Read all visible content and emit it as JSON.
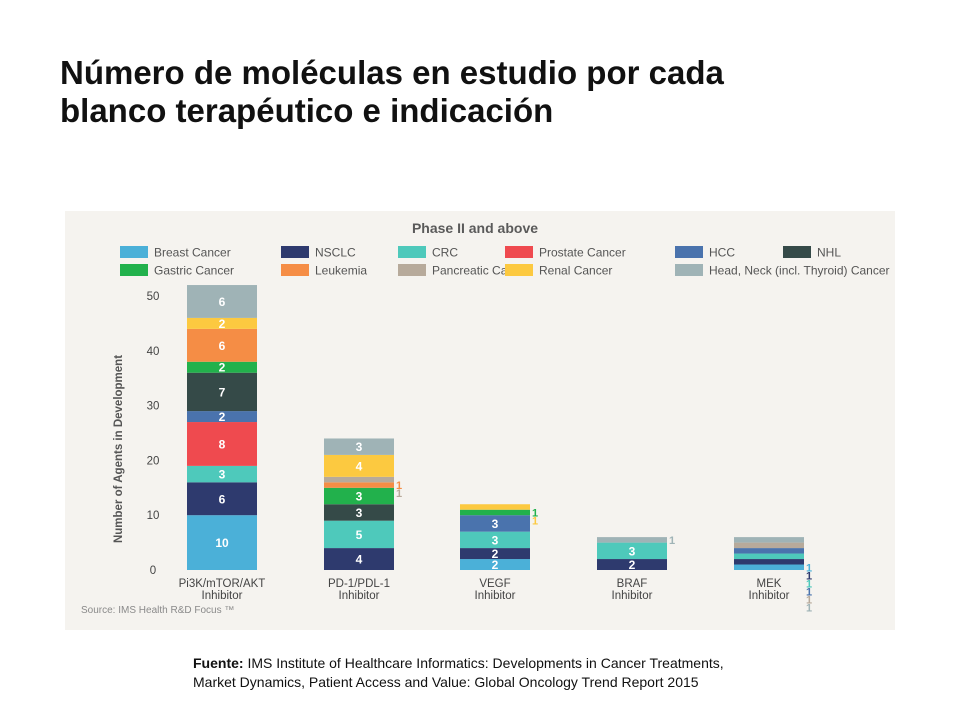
{
  "slide": {
    "title_line1": "Número de moléculas en estudio por cada",
    "title_line2": "blanco terapéutico e indicación",
    "source_label": "Fuente:",
    "source_text_line1": " IMS Institute of Healthcare Informatics: Developments in Cancer Treatments,",
    "source_text_line2": "Market Dynamics, Patient Access and Value: Global Oncology Trend Report 2015"
  },
  "chart_data": {
    "type": "bar",
    "stacked": true,
    "title": "Phase II and above",
    "ylabel": "Number of Agents in Development",
    "xlabel": "",
    "ylim": [
      0,
      50
    ],
    "yticks": [
      0,
      10,
      20,
      30,
      40,
      50
    ],
    "grid": false,
    "legend_position": "top",
    "source": "Source: IMS Health  R&D Focus ™",
    "categories": [
      [
        "Pi3K/mTOR/AKT",
        "Inhibitor"
      ],
      [
        "PD-1/PDL-1",
        "Inhibitor"
      ],
      [
        "VEGF",
        "Inhibitor"
      ],
      [
        "BRAF",
        "Inhibitor"
      ],
      [
        "MEK",
        "Inhibitor"
      ]
    ],
    "series": [
      {
        "name": "Breast Cancer",
        "color": "#4bb0d8",
        "values": [
          10,
          0,
          2,
          0,
          1
        ]
      },
      {
        "name": "NSCLC",
        "color": "#2e3a6e",
        "values": [
          6,
          4,
          2,
          2,
          1
        ]
      },
      {
        "name": "CRC",
        "color": "#4ec9bb",
        "values": [
          3,
          5,
          3,
          3,
          1
        ]
      },
      {
        "name": "Prostate Cancer",
        "color": "#ef4a4f",
        "values": [
          8,
          0,
          0,
          0,
          0
        ]
      },
      {
        "name": "HCC",
        "color": "#4a73ad",
        "values": [
          2,
          0,
          3,
          0,
          1
        ]
      },
      {
        "name": "NHL",
        "color": "#354a48",
        "values": [
          7,
          3,
          0,
          0,
          0
        ]
      },
      {
        "name": "Gastric Cancer",
        "color": "#22b14c",
        "values": [
          2,
          3,
          1,
          0,
          0
        ]
      },
      {
        "name": "Leukemia",
        "color": "#f58d45",
        "values": [
          6,
          1,
          0,
          0,
          0
        ]
      },
      {
        "name": "Pancreatic Cancer",
        "color": "#b7aa9b",
        "values": [
          0,
          1,
          0,
          0,
          1
        ]
      },
      {
        "name": "Renal Cancer",
        "color": "#fcc940",
        "values": [
          2,
          4,
          1,
          0,
          0
        ]
      },
      {
        "name": "Head, Neck (incl. Thyroid) Cancer",
        "color": "#9fb3b6",
        "values": [
          6,
          3,
          0,
          1,
          1
        ]
      }
    ]
  }
}
